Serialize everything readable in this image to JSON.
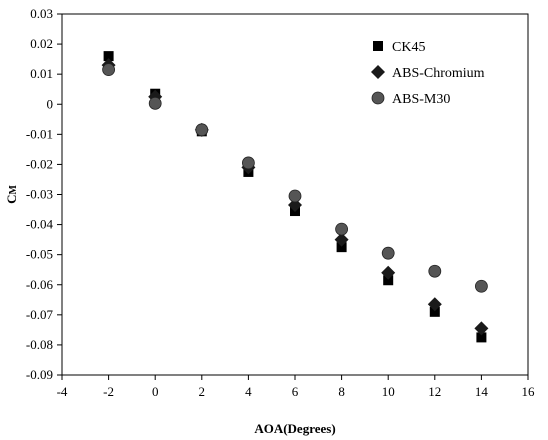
{
  "chart_data": {
    "type": "scatter",
    "title": "",
    "xlabel": "AOA(Degrees)",
    "ylabel": "C",
    "ylabel_sub": "M",
    "xlim": [
      -4,
      16
    ],
    "ylim": [
      -0.09,
      0.03
    ],
    "xticks": [
      -4,
      -2,
      0,
      2,
      4,
      6,
      8,
      10,
      12,
      14,
      16
    ],
    "yticks": [
      0.03,
      0.02,
      0.01,
      0,
      -0.01,
      -0.02,
      -0.03,
      -0.04,
      -0.05,
      -0.06,
      -0.07,
      -0.08,
      -0.09
    ],
    "xtick_labels": [
      "-4",
      "-2",
      "0",
      "2",
      "4",
      "6",
      "8",
      "10",
      "12",
      "14",
      "16"
    ],
    "ytick_labels": [
      "0.03",
      "0.02",
      "0.01",
      "0",
      "-0.01",
      "-0.02",
      "-0.03",
      "-0.04",
      "-0.05",
      "-0.06",
      "-0.07",
      "-0.08",
      "-0.09"
    ],
    "grid": false,
    "legend_position": "top-right",
    "series": [
      {
        "name": "CK45",
        "marker": "square",
        "color": "#000000",
        "x": [
          -2,
          0,
          2,
          4,
          6,
          8,
          10,
          12,
          14
        ],
        "y": [
          0.016,
          0.0035,
          -0.009,
          -0.0225,
          -0.0355,
          -0.0475,
          -0.0585,
          -0.069,
          -0.0775
        ]
      },
      {
        "name": "ABS-Chromium",
        "marker": "diamond",
        "color": "#1a1a1a",
        "x": [
          -2,
          0,
          2,
          4,
          6,
          8,
          10,
          12,
          14
        ],
        "y": [
          0.013,
          0.0025,
          -0.0085,
          -0.021,
          -0.0335,
          -0.045,
          -0.056,
          -0.0665,
          -0.0745
        ]
      },
      {
        "name": "ABS-M30",
        "marker": "circle",
        "color": "#555555",
        "x": [
          -2,
          0,
          2,
          4,
          6,
          8,
          10,
          12,
          14
        ],
        "y": [
          0.0115,
          0.0003,
          -0.0085,
          -0.0195,
          -0.0305,
          -0.0415,
          -0.0495,
          -0.0555,
          -0.0605
        ]
      }
    ]
  }
}
